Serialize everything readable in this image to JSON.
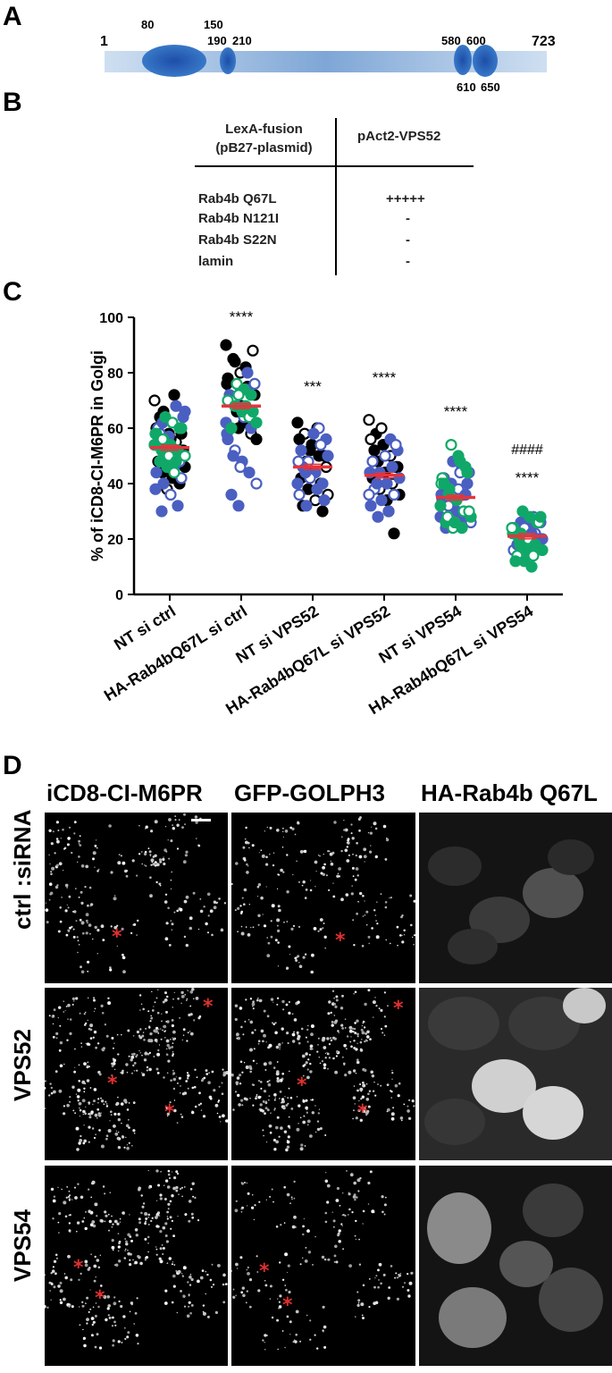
{
  "panel_a": {
    "letter": "A",
    "start": "1",
    "end": "723",
    "domain_labels": [
      "80",
      "150",
      "190",
      "210",
      "580",
      "600",
      "610",
      "650"
    ]
  },
  "panel_b": {
    "letter": "B",
    "header_left_line1": "LexA-fusion",
    "header_left_line2": "(pB27-plasmid)",
    "header_right": "pAct2-VPS52",
    "rows": [
      {
        "name": "Rab4b Q67L",
        "result": "+++++"
      },
      {
        "name": "Rab4b N121I",
        "result": "-"
      },
      {
        "name": "Rab4b S22N",
        "result": "-"
      },
      {
        "name": "lamin",
        "result": "-"
      }
    ]
  },
  "panel_c": {
    "letter": "C",
    "ylabel": "% of iCD8-CI-M6PR in Golgi",
    "yticks": [
      "0",
      "20",
      "40",
      "60",
      "80",
      "100"
    ],
    "categories": [
      "NT si ctrl",
      "HA-Rab4bQ67L si ctrl",
      "NT si VPS52",
      "HA-Rab4bQ67L si VPS52",
      "NT si VPS54",
      "HA-Rab4bQ67L si VPS54"
    ],
    "sig": [
      "",
      "****",
      "***",
      "****",
      "****",
      "****"
    ],
    "sig2": [
      "",
      "",
      "",
      "",
      "",
      "####"
    ]
  },
  "chart_data": {
    "type": "scatter",
    "ylabel": "% of iCD8-CI-M6PR in Golgi",
    "ylim": [
      0,
      100
    ],
    "categories": [
      "NT si ctrl",
      "HA-Rab4bQ67L si ctrl",
      "NT si VPS52",
      "HA-Rab4bQ67L si VPS52",
      "NT si VPS54",
      "HA-Rab4bQ67L si VPS54"
    ],
    "means": [
      53,
      68,
      46,
      43,
      35,
      21
    ],
    "series": [
      {
        "values": [
          [
            70,
            62,
            58,
            55,
            52,
            48,
            45,
            42,
            40,
            60,
            66,
            56,
            50,
            46,
            64,
            38,
            72,
            58,
            54,
            44
          ],
          [
            90,
            85,
            80,
            75,
            72,
            70,
            66,
            62,
            58,
            78,
            84,
            68,
            64,
            56,
            74,
            60,
            82,
            88,
            76,
            70
          ],
          [
            62,
            58,
            54,
            50,
            46,
            42,
            38,
            34,
            30,
            56,
            48,
            44,
            40,
            36,
            32,
            52,
            60,
            50
          ],
          [
            63,
            58,
            54,
            50,
            46,
            42,
            38,
            34,
            22,
            56,
            48,
            44,
            40,
            36,
            52,
            60,
            30,
            46
          ],
          [],
          []
        ]
      },
      {
        "values": [
          [
            68,
            64,
            60,
            56,
            52,
            48,
            44,
            40,
            36,
            32,
            66,
            58,
            50,
            46,
            42,
            38,
            62,
            54,
            30,
            57
          ],
          [
            80,
            76,
            72,
            68,
            64,
            60,
            56,
            52,
            48,
            44,
            40,
            36,
            32,
            74,
            66,
            58,
            70,
            62,
            50,
            46
          ],
          [
            60,
            56,
            52,
            48,
            44,
            40,
            36,
            32,
            58,
            54,
            50,
            46,
            42,
            38,
            34,
            48,
            44,
            40
          ],
          [
            56,
            52,
            48,
            44,
            40,
            36,
            32,
            28,
            50,
            46,
            42,
            38,
            34,
            30,
            54,
            44,
            40,
            36
          ],
          [
            46,
            44,
            42,
            40,
            38,
            36,
            34,
            32,
            30,
            28,
            26,
            24,
            48,
            44,
            40,
            36,
            32,
            28
          ],
          [
            28,
            26,
            24,
            22,
            20,
            18,
            16,
            26,
            24,
            22,
            20,
            18,
            24,
            22,
            20
          ]
        ]
      },
      {
        "values": [
          [
            64,
            62,
            60,
            58,
            56,
            54,
            52,
            50,
            48,
            46,
            44,
            60,
            58,
            56,
            54,
            52,
            50,
            48
          ],
          [
            76,
            74,
            72,
            70,
            68,
            66,
            64,
            62,
            60,
            72,
            68,
            66
          ],
          [],
          [],
          [
            54,
            50,
            46,
            42,
            38,
            34,
            30,
            28,
            26,
            24,
            48,
            44,
            40,
            36,
            32,
            28,
            26,
            24,
            30,
            40
          ],
          [
            30,
            28,
            26,
            24,
            22,
            20,
            18,
            16,
            14,
            12,
            10,
            26,
            22,
            18,
            24,
            20,
            16,
            14,
            28,
            12
          ]
        ]
      }
    ]
  },
  "panel_d": {
    "letter": "D",
    "col_headers": [
      "iCD8-CI-M6PR",
      "GFP-GOLPH3",
      "HA-Rab4b Q67L"
    ],
    "row_headers": [
      "ctrl  :siRNA",
      "VPS52",
      "VPS54"
    ],
    "asterisk": "*"
  }
}
